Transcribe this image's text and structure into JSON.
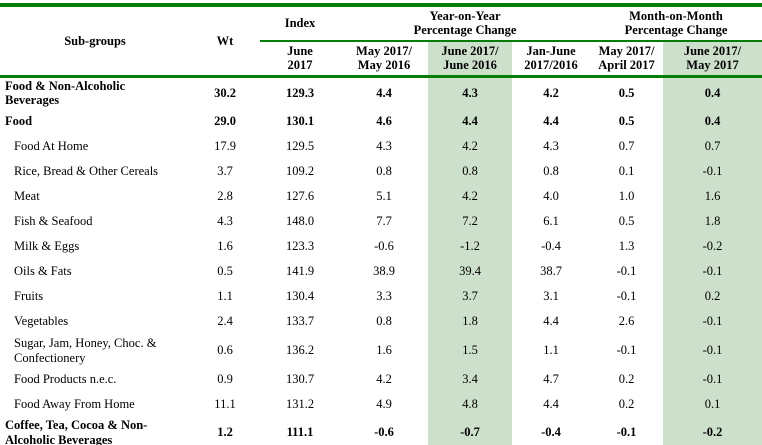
{
  "colors": {
    "rule_green": "#067d06",
    "highlight_green": "#cde0cb"
  },
  "table": {
    "header": {
      "subgroups": "Sub-groups",
      "wt": "Wt",
      "index_group": "Index",
      "yoy_group": "Year-on-Year\nPercentage Change",
      "mom_group": "Month-on-Month\nPercentage Change",
      "periods": [
        "June\n2017",
        "May 2017/\nMay 2016",
        "June 2017/\nJune 2016",
        "Jan-June\n2017/2016",
        "May 2017/\nApril 2017",
        "June 2017/\nMay 2017"
      ]
    },
    "rows": [
      {
        "label": "Food & Non-Alcoholic\nBeverages",
        "bold": true,
        "indent": false,
        "tall": true,
        "values": [
          "30.2",
          "129.3",
          "4.4",
          "4.3",
          "4.2",
          "0.5",
          "0.4"
        ]
      },
      {
        "label": "Food",
        "bold": true,
        "indent": false,
        "tall": false,
        "values": [
          "29.0",
          "130.1",
          "4.6",
          "4.4",
          "4.4",
          "0.5",
          "0.4"
        ]
      },
      {
        "label": "Food At Home",
        "bold": false,
        "indent": true,
        "tall": false,
        "values": [
          "17.9",
          "129.5",
          "4.3",
          "4.2",
          "4.3",
          "0.7",
          "0.7"
        ]
      },
      {
        "label": "Rice, Bread & Other Cereals",
        "bold": false,
        "indent": true,
        "tall": false,
        "values": [
          "3.7",
          "109.2",
          "0.8",
          "0.8",
          "0.8",
          "0.1",
          "-0.1"
        ]
      },
      {
        "label": "Meat",
        "bold": false,
        "indent": true,
        "tall": false,
        "values": [
          "2.8",
          "127.6",
          "5.1",
          "4.2",
          "4.0",
          "1.0",
          "1.6"
        ]
      },
      {
        "label": "Fish & Seafood",
        "bold": false,
        "indent": true,
        "tall": false,
        "values": [
          "4.3",
          "148.0",
          "7.7",
          "7.2",
          "6.1",
          "0.5",
          "1.8"
        ]
      },
      {
        "label": "Milk & Eggs",
        "bold": false,
        "indent": true,
        "tall": false,
        "values": [
          "1.6",
          "123.3",
          "-0.6",
          "-1.2",
          "-0.4",
          "1.3",
          "-0.2"
        ]
      },
      {
        "label": "Oils & Fats",
        "bold": false,
        "indent": true,
        "tall": false,
        "values": [
          "0.5",
          "141.9",
          "38.9",
          "39.4",
          "38.7",
          "-0.1",
          "-0.1"
        ]
      },
      {
        "label": "Fruits",
        "bold": false,
        "indent": true,
        "tall": false,
        "values": [
          "1.1",
          "130.4",
          "3.3",
          "3.7",
          "3.1",
          "-0.1",
          "0.2"
        ]
      },
      {
        "label": "Vegetables",
        "bold": false,
        "indent": true,
        "tall": false,
        "values": [
          "2.4",
          "133.7",
          "0.8",
          "1.8",
          "4.4",
          "2.6",
          "-0.1"
        ]
      },
      {
        "label": "Sugar, Jam, Honey, Choc. &\nConfectionery",
        "bold": false,
        "indent": true,
        "tall": true,
        "values": [
          "0.6",
          "136.2",
          "1.6",
          "1.5",
          "1.1",
          "-0.1",
          "-0.1"
        ]
      },
      {
        "label": "Food Products n.e.c.",
        "bold": false,
        "indent": true,
        "tall": false,
        "values": [
          "0.9",
          "130.7",
          "4.2",
          "3.4",
          "4.7",
          "0.2",
          "-0.1"
        ]
      },
      {
        "label": "Food Away From Home",
        "bold": false,
        "indent": true,
        "tall": false,
        "values": [
          "11.1",
          "131.2",
          "4.9",
          "4.8",
          "4.4",
          "0.2",
          "0.1"
        ]
      },
      {
        "label": "Coffee, Tea, Cocoa & Non-\nAlcoholic Beverages",
        "bold": true,
        "indent": false,
        "tall": true,
        "values": [
          "1.2",
          "111.1",
          "-0.6",
          "-0.7",
          "-0.4",
          "-0.1",
          "-0.2"
        ]
      }
    ]
  }
}
